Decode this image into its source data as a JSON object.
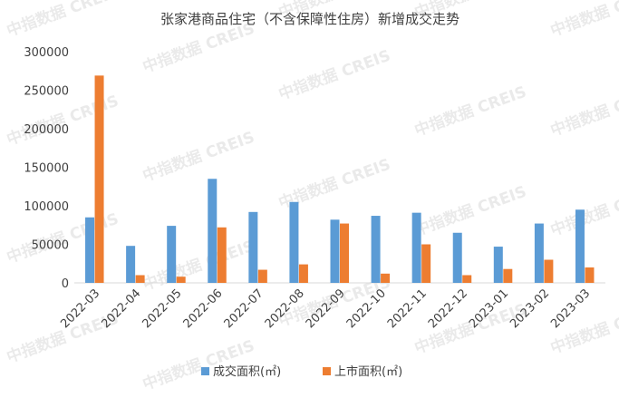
{
  "chart_data": {
    "type": "bar",
    "title": "张家港商品住宅（不含保障性住房）新增成交走势",
    "categories": [
      "2022-03",
      "2022-04",
      "2022-05",
      "2022-06",
      "2022-07",
      "2022-08",
      "2022-09",
      "2022-10",
      "2022-11",
      "2022-12",
      "2023-01",
      "2023-02",
      "2023-03"
    ],
    "series": [
      {
        "name": "成交面积(㎡)",
        "color": "#5b9bd5",
        "values": [
          85000,
          48000,
          74000,
          135000,
          92000,
          105000,
          82000,
          87000,
          91000,
          65000,
          47000,
          77000,
          95000
        ]
      },
      {
        "name": "上市面积(㎡)",
        "color": "#ed7d31",
        "values": [
          269000,
          10000,
          8000,
          72000,
          17000,
          24000,
          77000,
          12000,
          50000,
          10000,
          18000,
          30000,
          20000
        ]
      }
    ],
    "ylim": [
      0,
      300000
    ],
    "yticks": [
      "0",
      "50000",
      "100000",
      "150000",
      "200000",
      "250000",
      "300000"
    ],
    "grid": false,
    "legend_position": "bottom"
  },
  "watermark": {
    "text": "中指数据 CREIS"
  }
}
